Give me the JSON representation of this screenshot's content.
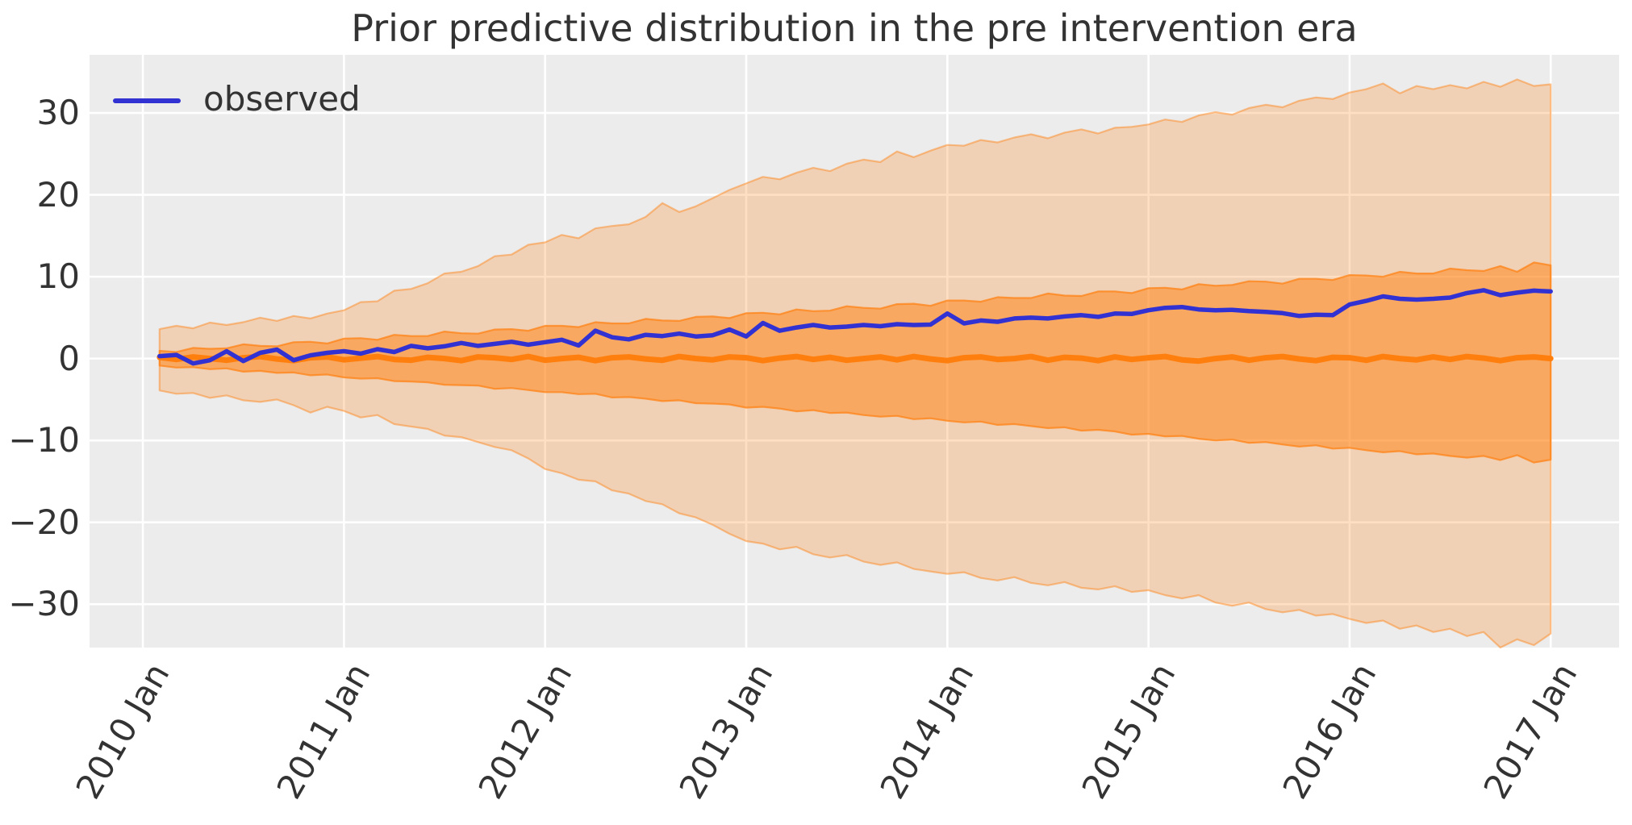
{
  "title": "Prior predictive distribution in the pre intervention era",
  "legend": {
    "label": "observed"
  },
  "colors": {
    "figure_background": "#ffffff",
    "axes_background": "#ececec",
    "grid": "#ffffff",
    "observed_line": "#3231d2",
    "prior_mean_line": "#ff7f0e",
    "band_base": "#ff7f0e",
    "text": "#333333"
  },
  "chart_data": {
    "type": "line",
    "title": "Prior predictive distribution in the pre intervention era",
    "xlabel": "",
    "ylabel": "",
    "grid": true,
    "legend_position": "upper left",
    "x_start_year": 2010.08333,
    "x_step_years": 0.08333,
    "n_points": 84,
    "xlim": [
      2009.735,
      2017.34
    ],
    "ylim": [
      -35.3,
      37.1
    ],
    "x_ticks": [
      {
        "year": 2010,
        "label": "2010 Jan"
      },
      {
        "year": 2011,
        "label": "2011 Jan"
      },
      {
        "year": 2012,
        "label": "2012 Jan"
      },
      {
        "year": 2013,
        "label": "2013 Jan"
      },
      {
        "year": 2014,
        "label": "2014 Jan"
      },
      {
        "year": 2015,
        "label": "2015 Jan"
      },
      {
        "year": 2016,
        "label": "2016 Jan"
      },
      {
        "year": 2017,
        "label": "2017 Jan"
      }
    ],
    "y_ticks": [
      {
        "value": 30,
        "label": "30"
      },
      {
        "value": 20,
        "label": "20"
      },
      {
        "value": 10,
        "label": "10"
      },
      {
        "value": 0,
        "label": "0"
      },
      {
        "value": -10,
        "label": "−10"
      },
      {
        "value": -20,
        "label": "−20"
      },
      {
        "value": -30,
        "label": "−30"
      }
    ],
    "series": [
      {
        "name": "observed",
        "role": "observed",
        "values": [
          0.3,
          0.45,
          -0.6,
          -0.2,
          0.9,
          -0.3,
          0.7,
          1.1,
          -0.2,
          0.4,
          0.7,
          0.9,
          0.6,
          1.15,
          0.8,
          1.55,
          1.25,
          1.5,
          1.9,
          1.55,
          1.8,
          2.05,
          1.7,
          2.0,
          2.3,
          1.6,
          3.4,
          2.6,
          2.35,
          2.9,
          2.75,
          3.05,
          2.7,
          2.85,
          3.55,
          2.7,
          4.35,
          3.4,
          3.8,
          4.1,
          3.8,
          3.9,
          4.1,
          3.95,
          4.2,
          4.1,
          4.15,
          5.5,
          4.3,
          4.65,
          4.5,
          4.9,
          5.0,
          4.9,
          5.15,
          5.3,
          5.1,
          5.5,
          5.45,
          5.9,
          6.2,
          6.3,
          6.0,
          5.9,
          5.95,
          5.8,
          5.7,
          5.55,
          5.2,
          5.35,
          5.3,
          6.6,
          7.05,
          7.6,
          7.3,
          7.2,
          7.3,
          7.45,
          8.0,
          8.35,
          7.75,
          8.05,
          8.3,
          8.2
        ]
      },
      {
        "name": "prior predictive mean",
        "role": "center",
        "values": [
          0.15,
          -0.1,
          0.2,
          0.0,
          -0.2,
          0.1,
          0.25,
          -0.05,
          -0.25,
          0.1,
          0.2,
          -0.15,
          0.05,
          0.25,
          -0.1,
          -0.2,
          0.15,
          0.0,
          -0.25,
          0.2,
          0.1,
          -0.1,
          0.25,
          -0.2,
          0.0,
          0.15,
          -0.25,
          0.1,
          0.2,
          -0.05,
          -0.2,
          0.25,
          0.0,
          -0.15,
          0.2,
          0.1,
          -0.25,
          0.05,
          0.25,
          -0.1,
          0.15,
          -0.2,
          0.0,
          0.2,
          -0.15,
          0.25,
          -0.05,
          -0.25,
          0.1,
          0.2,
          -0.1,
          0.0,
          0.25,
          -0.2,
          0.15,
          0.05,
          -0.25,
          0.2,
          -0.1,
          0.1,
          0.25,
          -0.15,
          -0.3,
          0.0,
          0.2,
          -0.2,
          0.1,
          0.25,
          -0.05,
          -0.25,
          0.15,
          0.1,
          -0.2,
          0.25,
          0.0,
          -0.15,
          0.2,
          -0.1,
          0.25,
          0.05,
          -0.25,
          0.1,
          0.2,
          0.0
        ]
      }
    ],
    "bands": [
      {
        "name": "outer predictive interval",
        "alpha": 0.25,
        "edge_alpha": 0.45,
        "upper": [
          3.6,
          4.0,
          3.7,
          4.4,
          4.1,
          4.45,
          5.0,
          4.6,
          5.2,
          4.9,
          5.5,
          5.9,
          6.9,
          7.0,
          8.3,
          8.5,
          9.2,
          10.4,
          10.6,
          11.3,
          12.5,
          12.7,
          13.9,
          14.2,
          15.1,
          14.7,
          15.9,
          16.2,
          16.4,
          17.3,
          19.0,
          17.9,
          18.6,
          19.6,
          20.6,
          21.4,
          22.2,
          21.9,
          22.7,
          23.3,
          22.9,
          23.8,
          24.3,
          24.0,
          25.3,
          24.6,
          25.4,
          26.1,
          26.0,
          26.7,
          26.4,
          27.0,
          27.4,
          26.9,
          27.6,
          28.0,
          27.5,
          28.2,
          28.3,
          28.6,
          29.2,
          28.9,
          29.7,
          30.1,
          29.8,
          30.6,
          31.0,
          30.7,
          31.5,
          31.9,
          31.7,
          32.5,
          32.9,
          33.6,
          32.4,
          33.3,
          32.9,
          33.4,
          33.0,
          33.8,
          33.2,
          34.1,
          33.3,
          33.5
        ],
        "lower": [
          -3.9,
          -4.3,
          -4.2,
          -4.8,
          -4.5,
          -5.1,
          -5.3,
          -5.0,
          -5.7,
          -6.6,
          -5.9,
          -6.4,
          -7.2,
          -6.9,
          -8.0,
          -8.3,
          -8.6,
          -9.4,
          -9.6,
          -10.2,
          -10.8,
          -11.2,
          -12.2,
          -13.5,
          -14.0,
          -14.8,
          -15.0,
          -16.1,
          -16.5,
          -17.4,
          -17.8,
          -18.9,
          -19.4,
          -20.3,
          -21.4,
          -22.3,
          -22.6,
          -23.3,
          -23.0,
          -23.9,
          -24.3,
          -24.0,
          -24.8,
          -25.2,
          -24.9,
          -25.7,
          -26.0,
          -26.3,
          -26.1,
          -26.8,
          -27.1,
          -26.7,
          -27.4,
          -27.7,
          -27.3,
          -28.0,
          -28.2,
          -27.8,
          -28.5,
          -28.3,
          -28.9,
          -29.3,
          -28.9,
          -29.8,
          -30.2,
          -29.8,
          -30.6,
          -31.0,
          -30.7,
          -31.4,
          -31.2,
          -31.8,
          -32.3,
          -32.0,
          -33.0,
          -32.6,
          -33.4,
          -33.0,
          -33.9,
          -33.4,
          -35.3,
          -34.3,
          -35.0,
          -33.6
        ]
      },
      {
        "name": "inner predictive interval",
        "alpha": 0.5,
        "edge_alpha": 0.7,
        "upper": [
          0.95,
          0.8,
          1.3,
          1.2,
          1.25,
          1.75,
          1.55,
          1.5,
          2.0,
          2.05,
          1.85,
          2.45,
          2.5,
          2.3,
          2.9,
          2.75,
          2.75,
          3.3,
          3.1,
          3.05,
          3.55,
          3.6,
          3.4,
          4.0,
          4.0,
          3.85,
          4.45,
          4.3,
          4.3,
          4.85,
          4.65,
          4.6,
          5.1,
          5.15,
          4.95,
          5.55,
          5.6,
          5.4,
          6.0,
          5.8,
          5.85,
          6.4,
          6.2,
          6.1,
          6.65,
          6.7,
          6.45,
          7.1,
          7.1,
          6.95,
          7.5,
          7.4,
          7.4,
          7.95,
          7.7,
          7.65,
          8.2,
          8.2,
          8.0,
          8.6,
          8.65,
          8.45,
          9.1,
          8.9,
          9.0,
          9.45,
          9.4,
          9.15,
          9.75,
          9.75,
          9.6,
          10.2,
          10.15,
          10.0,
          10.6,
          10.4,
          10.4,
          11.0,
          10.8,
          10.7,
          11.3,
          10.6,
          11.75,
          11.4
        ],
        "lower": [
          -0.85,
          -1.1,
          -1.05,
          -1.3,
          -1.2,
          -1.6,
          -1.5,
          -1.75,
          -1.7,
          -2.05,
          -1.95,
          -2.3,
          -2.45,
          -2.4,
          -2.75,
          -2.8,
          -2.9,
          -3.2,
          -3.25,
          -3.3,
          -3.7,
          -3.6,
          -3.85,
          -4.1,
          -4.1,
          -4.35,
          -4.3,
          -4.75,
          -4.7,
          -4.9,
          -5.2,
          -5.1,
          -5.45,
          -5.5,
          -5.6,
          -6.0,
          -5.9,
          -6.1,
          -6.45,
          -6.3,
          -6.65,
          -6.6,
          -6.9,
          -7.1,
          -7.0,
          -7.4,
          -7.3,
          -7.6,
          -7.8,
          -7.7,
          -8.1,
          -8.0,
          -8.25,
          -8.5,
          -8.4,
          -8.8,
          -8.7,
          -8.9,
          -9.3,
          -9.2,
          -9.5,
          -9.45,
          -9.8,
          -10.0,
          -9.9,
          -10.3,
          -10.2,
          -10.5,
          -10.75,
          -10.6,
          -11.0,
          -10.9,
          -11.2,
          -11.45,
          -11.3,
          -11.7,
          -11.6,
          -11.9,
          -12.1,
          -11.9,
          -12.4,
          -11.8,
          -12.7,
          -12.35
        ]
      }
    ]
  }
}
